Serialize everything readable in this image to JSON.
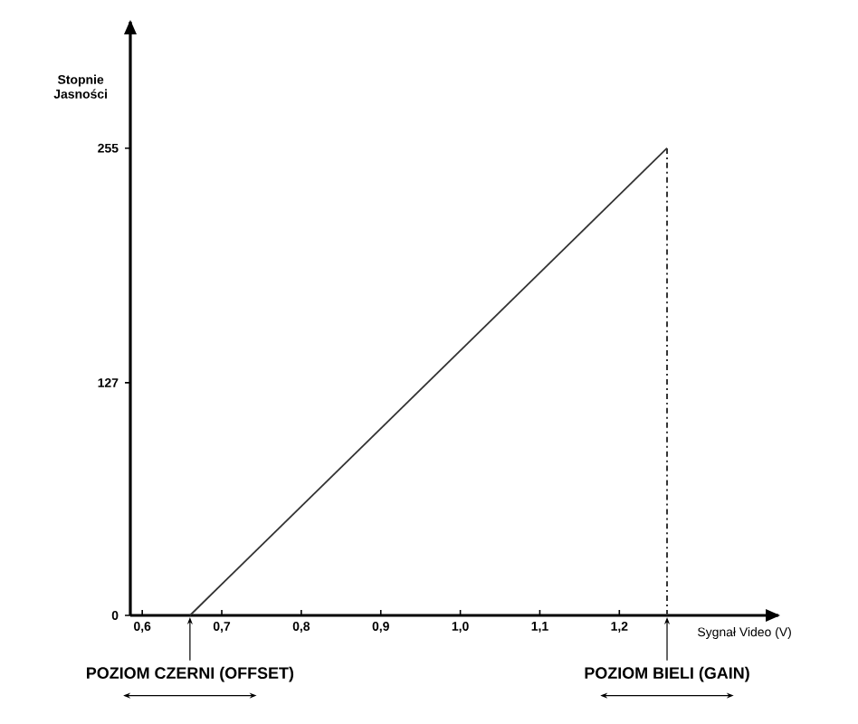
{
  "chart_data": {
    "type": "line",
    "x": [
      0.66,
      1.26
    ],
    "series": [
      {
        "color": "#333333",
        "values": [
          0,
          255
        ]
      }
    ],
    "xlabel": "Sygnał Video (V)",
    "ylabel": "Stopnie Jasności",
    "xlim": [
      0.585,
      1.4
    ],
    "ylim": [
      0,
      324
    ],
    "xticks": [
      {
        "value": 0.6,
        "label": "0,6"
      },
      {
        "value": 0.7,
        "label": "0,7"
      },
      {
        "value": 0.8,
        "label": "0,8"
      },
      {
        "value": 0.9,
        "label": "0,9"
      },
      {
        "value": 1.0,
        "label": "1,0"
      },
      {
        "value": 1.1,
        "label": "1,1"
      },
      {
        "value": 1.2,
        "label": "1,2"
      }
    ],
    "yticks": [
      0,
      127,
      255
    ],
    "ref_lines": [
      {
        "axis": "x",
        "value": 1.26,
        "line_style": "dashdot",
        "color": "#333333"
      }
    ],
    "annotations": [
      {
        "text": "POZIOM CZERNI (OFFSET)",
        "x": 0.66,
        "y": 0
      },
      {
        "text": "POZIOM BIELI (GAIN)",
        "x": 1.26,
        "y": 0
      }
    ],
    "grid": false,
    "marker": "none",
    "line_style": "solid"
  }
}
